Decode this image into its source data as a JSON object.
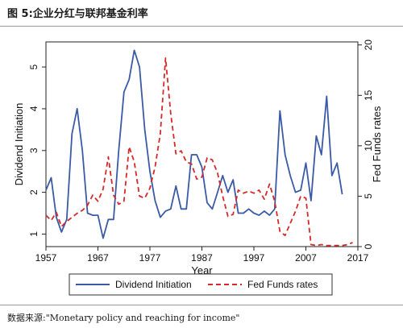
{
  "figure": {
    "title": "图 5:企业分红与联邦基金利率",
    "source": "数据来源:\"Monetary policy and reaching for income\""
  },
  "colors": {
    "dividend": "#3a5aa6",
    "fedfunds": "#d42a2a",
    "axis": "#222222"
  },
  "chart_data": {
    "type": "line",
    "xlabel": "Year",
    "ylabel_left": "Dividend Initiation",
    "ylabel_right": "Fed Funds rates",
    "xlim": [
      1957,
      2017
    ],
    "ylim_left": [
      0.7,
      5.6
    ],
    "ylim_right": [
      0,
      20.3
    ],
    "x_ticks": [
      1957,
      1967,
      1977,
      1987,
      1997,
      2007,
      2017
    ],
    "y_left_ticks": [
      1,
      2,
      3,
      4,
      5
    ],
    "y_right_ticks": [
      0,
      5,
      10,
      15,
      20
    ],
    "grid": false,
    "legend_position": "bottom",
    "series": [
      {
        "name": "Dividend Initiation",
        "axis": "left",
        "style": "solid",
        "x": [
          1957,
          1958,
          1959,
          1960,
          1961,
          1962,
          1963,
          1964,
          1965,
          1966,
          1967,
          1968,
          1969,
          1970,
          1971,
          1972,
          1973,
          1974,
          1975,
          1976,
          1977,
          1978,
          1979,
          1980,
          1981,
          1982,
          1983,
          1984,
          1985,
          1986,
          1987,
          1988,
          1989,
          1990,
          1991,
          1992,
          1993,
          1994,
          1995,
          1996,
          1997,
          1998,
          1999,
          2000,
          2001,
          2002,
          2003,
          2004,
          2005,
          2006,
          2007,
          2008,
          2009,
          2010,
          2011,
          2012,
          2013,
          2014
        ],
        "values": [
          2.05,
          2.35,
          1.4,
          1.05,
          1.35,
          3.4,
          4.0,
          3.0,
          1.5,
          1.45,
          1.45,
          0.9,
          1.35,
          1.35,
          3.0,
          4.4,
          4.7,
          5.4,
          5.0,
          3.5,
          2.5,
          1.8,
          1.4,
          1.55,
          1.6,
          2.15,
          1.6,
          1.6,
          2.9,
          2.9,
          2.6,
          1.75,
          1.6,
          2.0,
          2.4,
          2.0,
          2.3,
          1.5,
          1.5,
          1.6,
          1.5,
          1.45,
          1.55,
          1.45,
          1.6,
          3.95,
          2.9,
          2.4,
          2.0,
          2.05,
          2.7,
          1.8,
          3.35,
          2.9,
          4.3,
          2.4,
          2.7,
          1.95
        ]
      },
      {
        "name": "Fed Funds rates",
        "axis": "right",
        "style": "dashed",
        "x": [
          1957,
          1958,
          1959,
          1960,
          1961,
          1962,
          1963,
          1964,
          1965,
          1966,
          1967,
          1968,
          1969,
          1970,
          1971,
          1972,
          1973,
          1974,
          1975,
          1976,
          1977,
          1978,
          1979,
          1980,
          1981,
          1982,
          1983,
          1984,
          1985,
          1986,
          1987,
          1988,
          1989,
          1990,
          1991,
          1992,
          1993,
          1994,
          1995,
          1996,
          1997,
          1998,
          1999,
          2000,
          2001,
          2002,
          2003,
          2004,
          2005,
          2006,
          2007,
          2008,
          2009,
          2010,
          2011,
          2012,
          2013,
          2014,
          2015,
          2016
        ],
        "values": [
          3.1,
          2.6,
          3.4,
          2.0,
          2.5,
          2.9,
          3.3,
          3.6,
          4.1,
          5.1,
          4.5,
          5.7,
          8.9,
          5.1,
          4.2,
          4.5,
          9.9,
          8.4,
          5.0,
          4.8,
          5.8,
          7.9,
          11.2,
          18.7,
          13.2,
          9.2,
          9.5,
          8.4,
          8.2,
          6.7,
          6.9,
          8.8,
          8.6,
          7.3,
          5.0,
          3.0,
          3.2,
          5.6,
          5.3,
          5.5,
          5.3,
          5.6,
          4.7,
          6.2,
          4.5,
          1.5,
          1.1,
          2.3,
          3.5,
          5.0,
          4.8,
          0.2,
          0.1,
          0.2,
          0.1,
          0.1,
          0.1,
          0.1,
          0.2,
          0.4
        ]
      }
    ]
  }
}
